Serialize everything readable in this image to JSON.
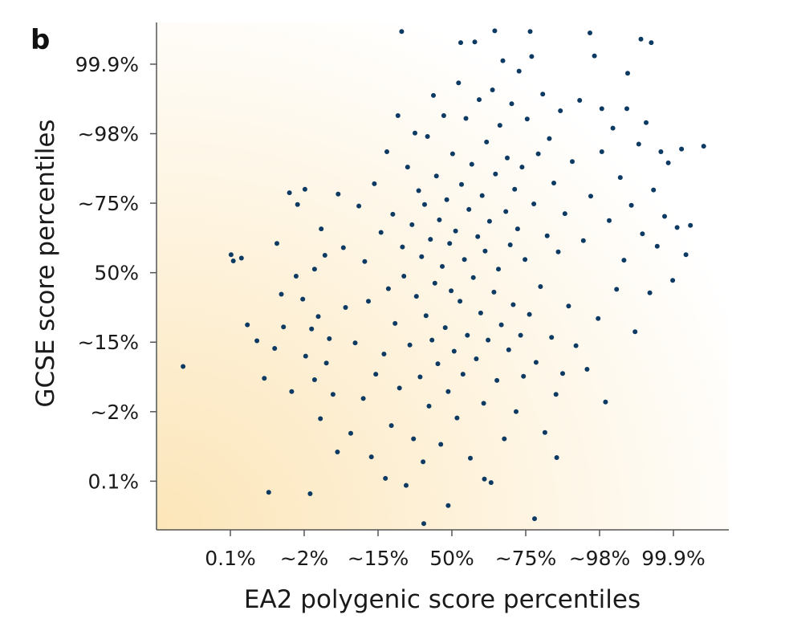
{
  "panel_label": "b",
  "colors": {
    "point": "#0d3a63",
    "axis": "#555555",
    "background_warm": "#fce5b8",
    "background_fade": "#ffffff"
  },
  "chart_data": {
    "type": "scatter",
    "title": "",
    "xlabel": "EA2 polygenic score percentiles",
    "ylabel": "GCSE score percentiles",
    "x_ticks": [
      {
        "value": -3.0,
        "label": "0.1%"
      },
      {
        "value": -2.0,
        "label": "~2%"
      },
      {
        "value": -1.0,
        "label": "~15%"
      },
      {
        "value": 0.0,
        "label": "50%"
      },
      {
        "value": 1.0,
        "label": "~75%"
      },
      {
        "value": 2.0,
        "label": "~98%"
      },
      {
        "value": 3.0,
        "label": "99.9%"
      }
    ],
    "y_ticks": [
      {
        "value": -3.0,
        "label": "0.1%"
      },
      {
        "value": -2.0,
        "label": "~2%"
      },
      {
        "value": -1.0,
        "label": "~15%"
      },
      {
        "value": 0.0,
        "label": "50%"
      },
      {
        "value": 1.0,
        "label": "~75%"
      },
      {
        "value": 2.0,
        "label": "~98%"
      },
      {
        "value": 3.0,
        "label": "99.9%"
      }
    ],
    "xlim": [
      -4.0,
      3.75
    ],
    "ylim": [
      -3.7,
      3.6
    ],
    "grid": false,
    "legend": "none",
    "series": [
      {
        "points": [
          [
            -3.64,
            -1.35
          ],
          [
            -2.31,
            -0.31
          ],
          [
            -2.99,
            0.26
          ],
          [
            -2.96,
            0.17
          ],
          [
            -2.85,
            0.21
          ],
          [
            -2.77,
            -0.75
          ],
          [
            -2.64,
            -0.98
          ],
          [
            -2.54,
            -1.52
          ],
          [
            -2.48,
            -3.16
          ],
          [
            -2.4,
            -1.09
          ],
          [
            -2.28,
            -0.78
          ],
          [
            -2.17,
            -1.71
          ],
          [
            -2.11,
            -0.05
          ],
          [
            -2.37,
            0.42
          ],
          [
            -2.2,
            1.15
          ],
          [
            -2.09,
            0.98
          ],
          [
            -2.02,
            -0.38
          ],
          [
            -1.98,
            -1.2
          ],
          [
            -1.9,
            -0.81
          ],
          [
            -1.86,
            -1.54
          ],
          [
            -1.81,
            -0.63
          ],
          [
            -1.78,
            -2.1
          ],
          [
            -1.72,
            0.25
          ],
          [
            -1.66,
            -0.95
          ],
          [
            -1.61,
            -1.75
          ],
          [
            -1.55,
            -2.58
          ],
          [
            -1.99,
            1.2
          ],
          [
            -1.86,
            0.05
          ],
          [
            -1.77,
            0.63
          ],
          [
            -1.7,
            -1.3
          ],
          [
            -1.54,
            1.13
          ],
          [
            -1.47,
            0.36
          ],
          [
            -1.44,
            -0.5
          ],
          [
            -1.37,
            -2.31
          ],
          [
            -1.31,
            -1.01
          ],
          [
            -1.26,
            0.96
          ],
          [
            -1.2,
            -1.81
          ],
          [
            -1.18,
            0.16
          ],
          [
            -1.13,
            -0.41
          ],
          [
            -1.09,
            -2.65
          ],
          [
            -1.05,
            1.28
          ],
          [
            -1.03,
            -1.46
          ],
          [
            -0.96,
            0.58
          ],
          [
            -0.92,
            -1.17
          ],
          [
            -0.88,
            1.74
          ],
          [
            -0.86,
            -0.23
          ],
          [
            -0.82,
            -2.2
          ],
          [
            -0.8,
            0.84
          ],
          [
            -0.77,
            -0.73
          ],
          [
            -0.73,
            2.26
          ],
          [
            -0.71,
            -1.66
          ],
          [
            -0.67,
            0.37
          ],
          [
            -0.65,
            -0.05
          ],
          [
            -0.62,
            -3.06
          ],
          [
            -0.6,
            1.52
          ],
          [
            -0.57,
            -1.04
          ],
          [
            -0.54,
            0.69
          ],
          [
            -0.52,
            -2.39
          ],
          [
            -0.5,
            2.01
          ],
          [
            -0.48,
            -0.34
          ],
          [
            -0.45,
            1.18
          ],
          [
            -0.43,
            -1.5
          ],
          [
            -0.41,
            0.23
          ],
          [
            -0.39,
            -2.72
          ],
          [
            -0.37,
            0.98
          ],
          [
            -0.35,
            -0.62
          ],
          [
            -0.33,
            1.96
          ],
          [
            -0.31,
            -1.92
          ],
          [
            -0.29,
            0.48
          ],
          [
            -0.27,
            -0.97
          ],
          [
            -0.25,
            2.55
          ],
          [
            -0.23,
            -0.15
          ],
          [
            -0.21,
            1.39
          ],
          [
            -0.19,
            -1.31
          ],
          [
            -0.17,
            0.76
          ],
          [
            -0.15,
            -2.47
          ],
          [
            -0.13,
            0.09
          ],
          [
            -0.11,
            2.26
          ],
          [
            -0.09,
            -0.79
          ],
          [
            -0.07,
            1.05
          ],
          [
            -0.05,
            -1.71
          ],
          [
            -0.03,
            0.42
          ],
          [
            -0.01,
            -0.26
          ],
          [
            0.01,
            1.71
          ],
          [
            0.03,
            -1.13
          ],
          [
            0.05,
            0.6
          ],
          [
            0.07,
            -2.09
          ],
          [
            0.09,
            2.73
          ],
          [
            0.11,
            -0.41
          ],
          [
            0.13,
            1.27
          ],
          [
            0.15,
            -1.46
          ],
          [
            0.17,
            0.19
          ],
          [
            0.19,
            2.22
          ],
          [
            0.21,
            -0.9
          ],
          [
            0.23,
            0.91
          ],
          [
            0.25,
            -2.67
          ],
          [
            0.27,
            1.56
          ],
          [
            0.29,
            -0.07
          ],
          [
            0.31,
            3.32
          ],
          [
            0.33,
            -1.24
          ],
          [
            0.35,
            0.52
          ],
          [
            0.37,
            2.49
          ],
          [
            0.39,
            -0.58
          ],
          [
            0.41,
            1.11
          ],
          [
            0.43,
            -1.88
          ],
          [
            0.45,
            0.31
          ],
          [
            0.47,
            1.88
          ],
          [
            0.49,
            -0.97
          ],
          [
            0.51,
            0.74
          ],
          [
            0.53,
            -3.02
          ],
          [
            0.55,
            2.63
          ],
          [
            0.57,
            -0.28
          ],
          [
            0.59,
            1.42
          ],
          [
            0.61,
            -1.55
          ],
          [
            0.63,
            0.05
          ],
          [
            0.65,
            2.12
          ],
          [
            0.67,
            -0.75
          ],
          [
            0.69,
            3.05
          ],
          [
            0.71,
            -2.39
          ],
          [
            0.73,
            0.88
          ],
          [
            0.75,
            1.65
          ],
          [
            0.77,
            -1.11
          ],
          [
            0.79,
            0.4
          ],
          [
            0.81,
            2.43
          ],
          [
            0.83,
            -0.46
          ],
          [
            0.85,
            1.2
          ],
          [
            0.87,
            -2.0
          ],
          [
            0.89,
            0.63
          ],
          [
            0.91,
            2.9
          ],
          [
            0.93,
            -0.9
          ],
          [
            0.95,
            1.52
          ],
          [
            0.97,
            -1.49
          ],
          [
            0.99,
            0.19
          ],
          [
            1.02,
            2.21
          ],
          [
            1.05,
            -0.6
          ],
          [
            1.08,
            3.11
          ],
          [
            1.11,
            0.99
          ],
          [
            1.14,
            -1.29
          ],
          [
            1.17,
            1.71
          ],
          [
            1.2,
            -0.2
          ],
          [
            1.23,
            2.57
          ],
          [
            1.26,
            -2.3
          ],
          [
            1.29,
            0.53
          ],
          [
            1.32,
            1.93
          ],
          [
            1.35,
            -0.93
          ],
          [
            1.38,
            1.29
          ],
          [
            1.41,
            -1.75
          ],
          [
            1.44,
            0.3
          ],
          [
            1.47,
            2.33
          ],
          [
            1.5,
            -1.45
          ],
          [
            1.53,
            0.85
          ],
          [
            1.58,
            -0.48
          ],
          [
            1.63,
            1.6
          ],
          [
            1.68,
            -1.05
          ],
          [
            1.73,
            2.48
          ],
          [
            1.78,
            0.46
          ],
          [
            1.83,
            -1.39
          ],
          [
            1.88,
            1.1
          ],
          [
            1.93,
            3.12
          ],
          [
            1.98,
            -0.66
          ],
          [
            2.03,
            1.74
          ],
          [
            2.08,
            -1.86
          ],
          [
            2.13,
            0.75
          ],
          [
            2.18,
            2.08
          ],
          [
            2.23,
            -0.24
          ],
          [
            2.28,
            1.37
          ],
          [
            2.33,
            0.18
          ],
          [
            2.38,
            2.87
          ],
          [
            2.43,
            0.97
          ],
          [
            2.48,
            -0.85
          ],
          [
            2.53,
            1.85
          ],
          [
            2.58,
            0.56
          ],
          [
            2.63,
            2.16
          ],
          [
            2.68,
            -0.29
          ],
          [
            2.73,
            1.19
          ],
          [
            2.78,
            0.38
          ],
          [
            2.83,
            1.74
          ],
          [
            2.88,
            0.81
          ],
          [
            2.93,
            1.58
          ],
          [
            2.99,
            -0.11
          ],
          [
            3.05,
            0.65
          ],
          [
            3.11,
            1.78
          ],
          [
            3.17,
            0.26
          ],
          [
            3.23,
            0.68
          ],
          [
            3.41,
            1.82
          ],
          [
            2.03,
            2.36
          ],
          [
            2.37,
            2.36
          ],
          [
            0.12,
            3.31
          ],
          [
            -0.68,
            3.47
          ],
          [
            1.87,
            3.45
          ],
          [
            1.06,
            3.47
          ],
          [
            0.58,
            3.48
          ],
          [
            2.56,
            3.36
          ],
          [
            2.7,
            3.31
          ],
          [
            1.12,
            -3.54
          ],
          [
            -0.38,
            -3.61
          ],
          [
            0.44,
            -2.97
          ],
          [
            1.42,
            -2.66
          ],
          [
            -1.92,
            -3.18
          ],
          [
            -0.05,
            -3.35
          ],
          [
            -0.9,
            -2.96
          ]
        ]
      }
    ]
  }
}
